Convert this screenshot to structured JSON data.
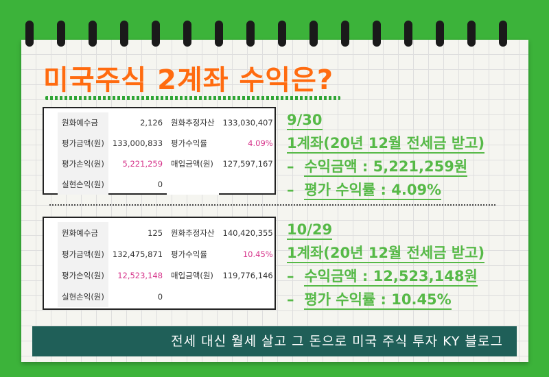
{
  "title": "미국주식 2계좌 수익은?",
  "accounts": [
    {
      "table": [
        {
          "label1": "원화예수금",
          "value1": "2,126",
          "label2": "원화추정자산",
          "value2": "133,030,407"
        },
        {
          "label1": "평가금액(원)",
          "value1": "133,000,833",
          "label2": "평가수익률",
          "value2": "4.09%"
        },
        {
          "label1": "평가손익(원)",
          "value1": "5,221,259",
          "label2": "매입금액(원)",
          "value2": "127,597,167"
        },
        {
          "label1": "실현손익(원)",
          "value1": "0",
          "label2": "",
          "value2": ""
        }
      ],
      "date": "9/30",
      "account_line": "1계좌(20년 12월 전세금 받고)",
      "profit_line": "수익금액 : 5,221,259원",
      "rate_line": "평가 수익률 : 4.09%"
    },
    {
      "table": [
        {
          "label1": "원화예수금",
          "value1": "125",
          "label2": "원화추정자산",
          "value2": "140,420,355"
        },
        {
          "label1": "평가금액(원)",
          "value1": "132,475,871",
          "label2": "평가수익률",
          "value2": "10.45%"
        },
        {
          "label1": "평가손익(원)",
          "value1": "12,523,148",
          "label2": "매입금액(원)",
          "value2": "119,776,146"
        },
        {
          "label1": "실현손익(원)",
          "value1": "0",
          "label2": "",
          "value2": ""
        }
      ],
      "date": "10/29",
      "account_line": "1계좌(20년 12월 전세금 받고)",
      "profit_line": "수익금액 : 12,523,148원",
      "rate_line": "평가 수익률 : 10.45%"
    }
  ],
  "footer": "전세 대신 월세 살고 그 돈으로 미국 주식 투자 KY 블로그",
  "colors": {
    "background": "#3cb33a",
    "title": "#ff6b0f",
    "info": "#56b947",
    "footer_bg": "#1f5f58",
    "highlight": "#d6338a"
  }
}
